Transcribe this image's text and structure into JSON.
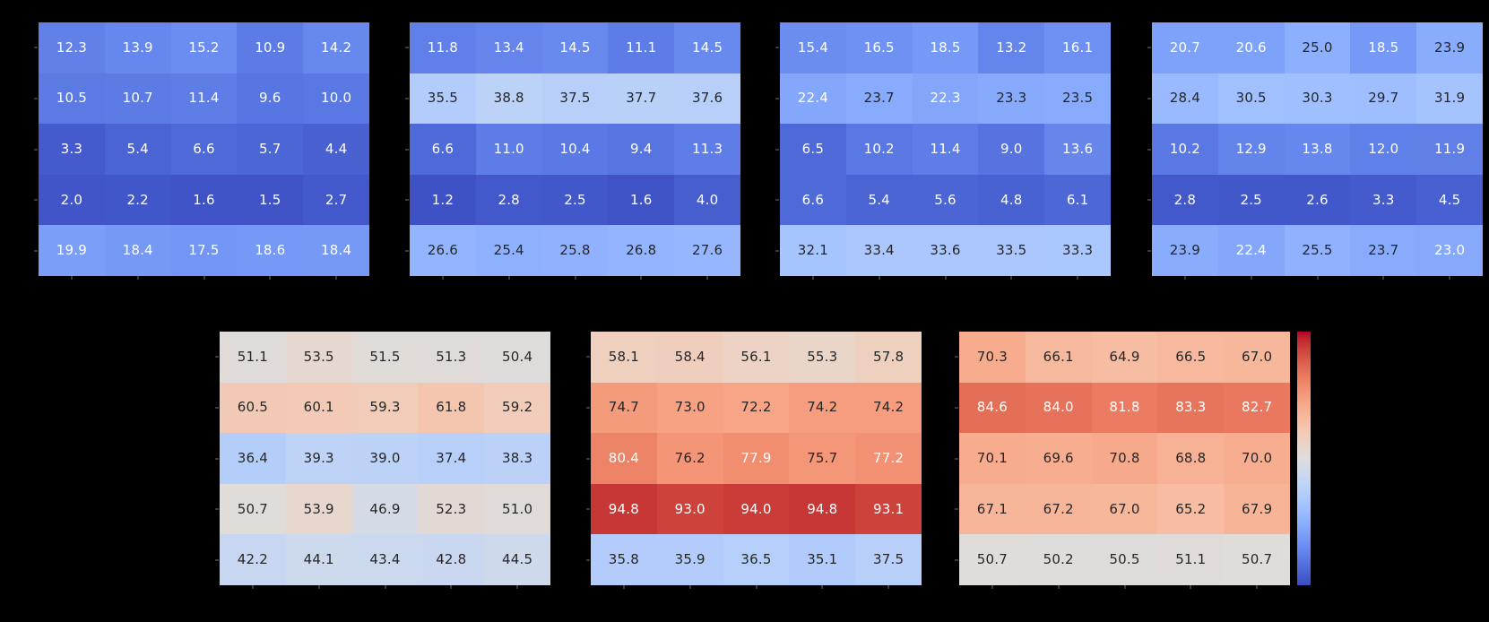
{
  "figure": {
    "background_color": "#000000",
    "annotation_light_text_color": "#ffffff",
    "annotation_dark_text_color": "#262626",
    "tick_color": "#3a3a3a"
  },
  "chart_data": {
    "type": "heatmap",
    "colormap": "coolwarm",
    "vmin": 0,
    "vmax": 100,
    "grid_rows": 5,
    "grid_cols": 5,
    "annotation_format": "one-decimal",
    "heatmaps": [
      {
        "name": "heatmap-1",
        "values": [
          [
            12.3,
            13.9,
            15.2,
            10.9,
            14.2
          ],
          [
            10.5,
            10.7,
            11.4,
            9.6,
            10.0
          ],
          [
            3.3,
            5.4,
            6.6,
            5.7,
            4.4
          ],
          [
            2.0,
            2.2,
            1.6,
            1.5,
            2.7
          ],
          [
            19.9,
            18.4,
            17.5,
            18.6,
            18.4
          ]
        ]
      },
      {
        "name": "heatmap-2",
        "values": [
          [
            11.8,
            13.4,
            14.5,
            11.1,
            14.5
          ],
          [
            35.5,
            38.8,
            37.5,
            37.7,
            37.6
          ],
          [
            6.6,
            11.0,
            10.4,
            9.4,
            11.3
          ],
          [
            1.2,
            2.8,
            2.5,
            1.6,
            4.0
          ],
          [
            26.6,
            25.4,
            25.8,
            26.8,
            27.6
          ]
        ]
      },
      {
        "name": "heatmap-3",
        "values": [
          [
            15.4,
            16.5,
            18.5,
            13.2,
            16.1
          ],
          [
            22.4,
            23.7,
            22.3,
            23.3,
            23.5
          ],
          [
            6.5,
            10.2,
            11.4,
            9.0,
            13.6
          ],
          [
            6.6,
            5.4,
            5.6,
            4.8,
            6.1
          ],
          [
            32.1,
            33.4,
            33.6,
            33.5,
            33.3
          ]
        ]
      },
      {
        "name": "heatmap-4",
        "values": [
          [
            20.7,
            20.6,
            25.0,
            18.5,
            23.9
          ],
          [
            28.4,
            30.5,
            30.3,
            29.7,
            31.9
          ],
          [
            10.2,
            12.9,
            13.8,
            12.0,
            11.9
          ],
          [
            2.8,
            2.5,
            2.6,
            3.3,
            4.5
          ],
          [
            23.9,
            22.4,
            25.5,
            23.7,
            23.0
          ]
        ]
      },
      {
        "name": "heatmap-5",
        "values": [
          [
            51.1,
            53.5,
            51.5,
            51.3,
            50.4
          ],
          [
            60.5,
            60.1,
            59.3,
            61.8,
            59.2
          ],
          [
            36.4,
            39.3,
            39.0,
            37.4,
            38.3
          ],
          [
            50.7,
            53.9,
            46.9,
            52.3,
            51.0
          ],
          [
            42.2,
            44.1,
            43.4,
            42.8,
            44.5
          ]
        ]
      },
      {
        "name": "heatmap-6",
        "values": [
          [
            58.1,
            58.4,
            56.1,
            55.3,
            57.8
          ],
          [
            74.7,
            73.0,
            72.2,
            74.2,
            74.2
          ],
          [
            80.4,
            76.2,
            77.9,
            75.7,
            77.2
          ],
          [
            94.8,
            93.0,
            94.0,
            94.8,
            93.1
          ],
          [
            35.8,
            35.9,
            36.5,
            35.1,
            37.5
          ]
        ]
      },
      {
        "name": "heatmap-7",
        "values": [
          [
            70.3,
            66.1,
            64.9,
            66.5,
            67.0
          ],
          [
            84.6,
            84.0,
            81.8,
            83.3,
            82.7
          ],
          [
            70.1,
            69.6,
            70.8,
            68.8,
            70.0
          ],
          [
            67.1,
            67.2,
            67.0,
            65.2,
            67.9
          ],
          [
            50.7,
            50.2,
            50.5,
            51.1,
            50.7
          ]
        ]
      }
    ],
    "colorbar": {
      "orientation": "vertical",
      "colormap": "coolwarm",
      "bottom_color_hex": "#3b4cc0",
      "mid_color_hex": "#dddddd",
      "top_color_hex": "#b40426"
    }
  }
}
